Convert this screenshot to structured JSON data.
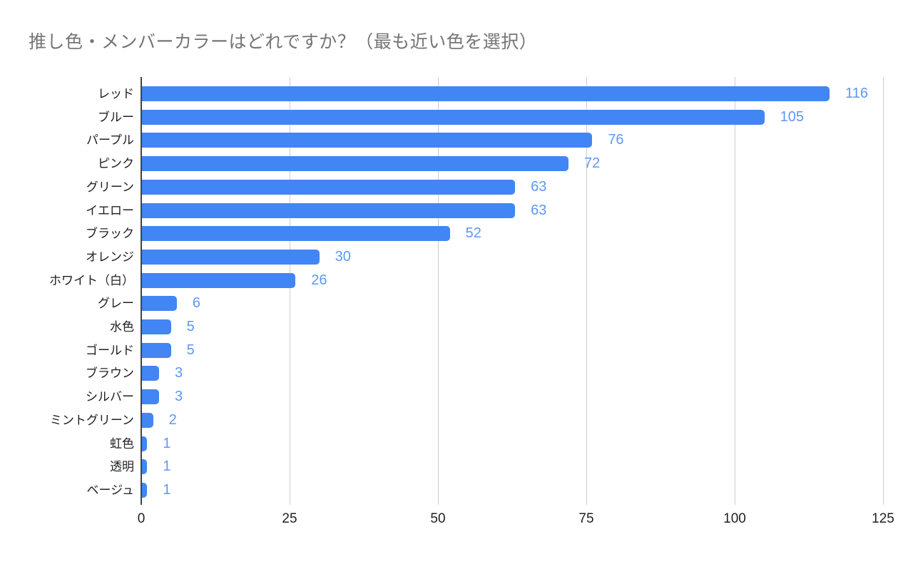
{
  "page": {
    "background_color": "#ffffff"
  },
  "chart_data": {
    "type": "bar",
    "orientation": "horizontal",
    "title": "推し色・メンバーカラーはどれですか？（最も近い色を選択）",
    "categories": [
      "レッド",
      "ブルー",
      "パープル",
      "ピンク",
      "グリーン",
      "イエロー",
      "ブラック",
      "オレンジ",
      "ホワイト（白）",
      "グレー",
      "水色",
      "ゴールド",
      "ブラウン",
      "シルバー",
      "ミントグリーン",
      "虹色",
      "透明",
      "ベージュ"
    ],
    "values": [
      116,
      105,
      76,
      72,
      63,
      63,
      52,
      30,
      26,
      6,
      5,
      5,
      3,
      3,
      2,
      1,
      1,
      1
    ],
    "xlim": [
      0,
      125
    ],
    "x_ticks": [
      "0",
      "25",
      "50",
      "75",
      "100",
      "125"
    ],
    "grid": true,
    "legend": "none",
    "value_labels_shown": true,
    "colors": {
      "bar": "#4285f4",
      "value_label": "#5e97f6",
      "title": "#757575",
      "axis_text": "#202124",
      "gridline": "#cccccc",
      "axis_line": "#424242"
    }
  }
}
